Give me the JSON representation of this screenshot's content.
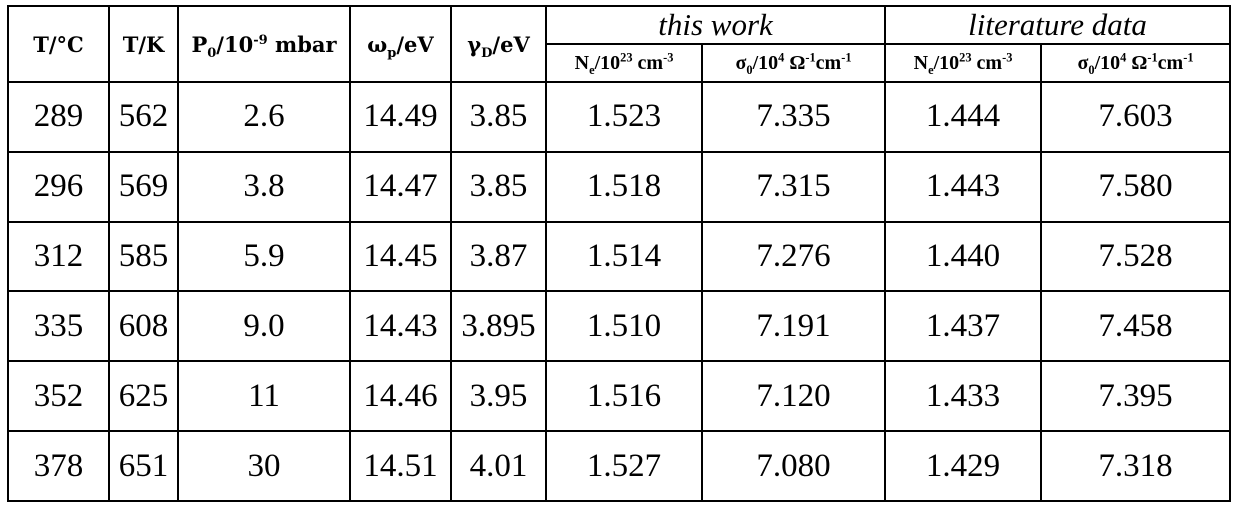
{
  "headers": {
    "t_c": "T/°C",
    "t_k": "T/K",
    "p0": {
      "main": "P",
      "sub": "0",
      "mid": "/10",
      "sup": "-9",
      "tail": " mbar"
    },
    "omega_p": {
      "main": "ω",
      "sub": "p",
      "tail": "/eV"
    },
    "gamma_d": {
      "main": "γ",
      "sub": "D",
      "tail": "/eV"
    },
    "group_this_work": "this work",
    "group_literature": "literature data",
    "ne": {
      "main": "N",
      "sub": "e",
      "mid": "/10",
      "sup": "23",
      "tail": " cm",
      "sup2": "-3"
    },
    "sigma0": {
      "main": "σ",
      "sub": "0",
      "mid": "/10",
      "sup": "4",
      "mid2": " Ω",
      "sup2": "-1",
      "mid3": "cm",
      "sup3": "-1"
    }
  },
  "rows": [
    [
      "289",
      "562",
      "2.6",
      "14.49",
      "3.85",
      "1.523",
      "7.335",
      "1.444",
      "7.603"
    ],
    [
      "296",
      "569",
      "3.8",
      "14.47",
      "3.85",
      "1.518",
      "7.315",
      "1.443",
      "7.580"
    ],
    [
      "312",
      "585",
      "5.9",
      "14.45",
      "3.87",
      "1.514",
      "7.276",
      "1.440",
      "7.528"
    ],
    [
      "335",
      "608",
      "9.0",
      "14.43",
      "3.895",
      "1.510",
      "7.191",
      "1.437",
      "7.458"
    ],
    [
      "352",
      "625",
      "11",
      "14.46",
      "3.95",
      "1.516",
      "7.120",
      "1.433",
      "7.395"
    ],
    [
      "378",
      "651",
      "30",
      "14.51",
      "4.01",
      "1.527",
      "7.080",
      "1.429",
      "7.318"
    ]
  ]
}
